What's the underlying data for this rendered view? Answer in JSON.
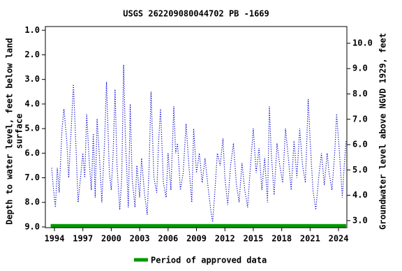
{
  "chart_data": {
    "type": "line",
    "title": "USGS 262209080044702 PB -1669",
    "ylabel_lines": [
      "Depth to water level, feet below land",
      "surface"
    ],
    "y2label": "Groundwater level above NGVD 1929, feet",
    "xlim": [
      1993.04,
      2024.88
    ],
    "xticks": [
      1994,
      1997,
      2000,
      2003,
      2006,
      2009,
      2012,
      2015,
      2018,
      2021,
      2024
    ],
    "ylim": [
      0.85,
      9.03
    ],
    "y_inverted": true,
    "yticks": [
      {
        "value": 1,
        "label": "1.0"
      },
      {
        "value": 2,
        "label": "2.0"
      },
      {
        "value": 3,
        "label": "3.0"
      },
      {
        "value": 4,
        "label": "4.0"
      },
      {
        "value": 5,
        "label": "5.0"
      },
      {
        "value": 6,
        "label": "6.0"
      },
      {
        "value": 7,
        "label": "7.0"
      },
      {
        "value": 8,
        "label": "8.0"
      },
      {
        "value": 9,
        "label": "9.0"
      }
    ],
    "y2lim": [
      2.72,
      10.66
    ],
    "y2ticks": [
      {
        "value": 3,
        "label": "3.0"
      },
      {
        "value": 4,
        "label": "4.0"
      },
      {
        "value": 5,
        "label": "5.0"
      },
      {
        "value": 6,
        "label": "6.0"
      },
      {
        "value": 7,
        "label": "7.0"
      },
      {
        "value": 8,
        "label": "8.0"
      },
      {
        "value": 9,
        "label": "9.0"
      },
      {
        "value": 10,
        "label": "10.0"
      }
    ],
    "series": [
      {
        "color": "#0000cc",
        "x": [
          1993.7,
          1993.9,
          1994.1,
          1994.3,
          1994.5,
          1994.8,
          1995.0,
          1995.3,
          1995.5,
          1995.8,
          1996.0,
          1996.3,
          1996.5,
          1996.7,
          1997.0,
          1997.2,
          1997.4,
          1997.7,
          1997.9,
          1998.1,
          1998.3,
          1998.5,
          1998.8,
          1999.0,
          1999.3,
          1999.5,
          1999.8,
          2000.0,
          2000.2,
          2000.4,
          2000.6,
          2000.9,
          2001.1,
          2001.3,
          2001.5,
          2001.8,
          2002.0,
          2002.2,
          2002.5,
          2002.7,
          2003.0,
          2003.2,
          2003.5,
          2003.8,
          2004.0,
          2004.2,
          2004.5,
          2004.8,
          2005.0,
          2005.2,
          2005.5,
          2005.8,
          2006.0,
          2006.3,
          2006.6,
          2006.8,
          2007.0,
          2007.3,
          2007.6,
          2007.9,
          2008.2,
          2008.5,
          2008.7,
          2009.0,
          2009.3,
          2009.6,
          2009.9,
          2010.2,
          2010.5,
          2010.7,
          2010.9,
          2011.2,
          2011.5,
          2011.8,
          2012.0,
          2012.3,
          2012.6,
          2012.9,
          2013.2,
          2013.5,
          2013.8,
          2014.1,
          2014.4,
          2014.7,
          2015.0,
          2015.3,
          2015.6,
          2015.9,
          2016.2,
          2016.5,
          2016.7,
          2016.9,
          2017.2,
          2017.5,
          2017.8,
          2018.1,
          2018.4,
          2018.7,
          2019.0,
          2019.3,
          2019.6,
          2019.9,
          2020.2,
          2020.5,
          2020.8,
          2021.0,
          2021.3,
          2021.6,
          2021.9,
          2022.2,
          2022.5,
          2022.8,
          2023.0,
          2023.3,
          2023.6,
          2023.8,
          2024.1,
          2024.4,
          2024.6,
          2024.8
        ],
        "values": [
          6.6,
          7.5,
          8.2,
          6.6,
          7.6,
          5.0,
          4.2,
          5.5,
          7.0,
          4.8,
          3.2,
          6.0,
          8.0,
          7.2,
          6.0,
          7.0,
          4.4,
          6.5,
          7.5,
          5.2,
          7.8,
          4.6,
          6.5,
          8.0,
          5.5,
          3.1,
          6.8,
          7.5,
          6.0,
          3.4,
          6.5,
          8.3,
          7.0,
          2.4,
          5.5,
          8.2,
          4.0,
          7.0,
          8.2,
          6.5,
          7.8,
          6.2,
          7.6,
          8.5,
          6.5,
          3.5,
          7.0,
          7.6,
          5.5,
          4.2,
          7.2,
          7.8,
          6.0,
          7.5,
          4.1,
          6.0,
          5.6,
          7.5,
          6.8,
          4.8,
          6.5,
          8.0,
          5.0,
          6.8,
          6.0,
          7.2,
          6.2,
          7.3,
          8.3,
          8.8,
          7.8,
          6.0,
          6.5,
          5.4,
          7.0,
          8.1,
          6.5,
          5.6,
          7.2,
          8.0,
          6.4,
          7.5,
          8.2,
          6.5,
          5.0,
          6.8,
          5.8,
          7.5,
          6.2,
          8.0,
          4.1,
          6.0,
          7.7,
          5.6,
          6.5,
          7.2,
          5.0,
          6.2,
          7.5,
          5.5,
          7.0,
          5.0,
          6.5,
          7.2,
          3.8,
          5.5,
          7.5,
          8.3,
          7.0,
          6.0,
          7.3,
          6.0,
          6.8,
          7.5,
          6.0,
          4.4,
          6.0,
          7.8,
          6.5,
          5.5
        ]
      },
      {
        "name": "Period of approved data",
        "color": "#009900",
        "x": [
          1993.6,
          2024.8
        ],
        "values": [
          8.95,
          8.95
        ]
      }
    ]
  }
}
